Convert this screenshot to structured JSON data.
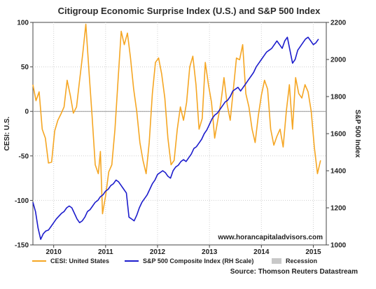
{
  "chart_data": {
    "type": "line",
    "title": "Citigroup Economic Surprise Index (U.S.) and S&P 500 Index",
    "ylabel_left": "CESI: U.S.",
    "ylabel_right": "S&P 500 Index",
    "ylim_left": [
      -150,
      100
    ],
    "ylim_right": [
      1000,
      2200
    ],
    "yticks_left": [
      -150,
      -100,
      -50,
      0,
      50,
      100
    ],
    "yticks_right": [
      1000,
      1200,
      1400,
      1600,
      1800,
      2000,
      2200
    ],
    "xlim": [
      2009.6,
      2015.25
    ],
    "xticks": [
      2010,
      2011,
      2012,
      2013,
      2014,
      2015
    ],
    "xtick_labels": [
      "2010",
      "2011",
      "2012",
      "2013",
      "2014",
      "2015"
    ],
    "grid": true,
    "watermark": "www.horancapitaladvisors.com",
    "source": "Source: Thomson Reuters Datastream",
    "colors": {
      "cesi": "#f5a623",
      "spx": "#1c1ccc",
      "recession": "#c8c8c8",
      "zero_line": "#999999"
    },
    "legend": [
      {
        "name": "CESI: United States",
        "color": "#f5a623",
        "kind": "line"
      },
      {
        "name": "S&P 500 Composite Index (RH Scale)",
        "color": "#1c1ccc",
        "kind": "line"
      },
      {
        "name": "Recession",
        "color": "#c8c8c8",
        "kind": "box"
      }
    ],
    "series": [
      {
        "name": "CESI: United States",
        "axis": "left",
        "x": [
          2009.6,
          2009.66,
          2009.72,
          2009.78,
          2009.84,
          2009.9,
          2009.96,
          2010.02,
          2010.08,
          2010.14,
          2010.2,
          2010.26,
          2010.32,
          2010.38,
          2010.44,
          2010.5,
          2010.56,
          2010.62,
          2010.68,
          2010.74,
          2010.8,
          2010.86,
          2010.9,
          2010.94,
          2011.0,
          2011.06,
          2011.12,
          2011.18,
          2011.24,
          2011.3,
          2011.36,
          2011.42,
          2011.48,
          2011.54,
          2011.6,
          2011.66,
          2011.72,
          2011.78,
          2011.84,
          2011.9,
          2011.96,
          2012.02,
          2012.08,
          2012.14,
          2012.2,
          2012.26,
          2012.32,
          2012.38,
          2012.44,
          2012.5,
          2012.56,
          2012.62,
          2012.68,
          2012.74,
          2012.8,
          2012.86,
          2012.92,
          2012.98,
          2013.04,
          2013.1,
          2013.16,
          2013.22,
          2013.28,
          2013.34,
          2013.4,
          2013.46,
          2013.52,
          2013.58,
          2013.64,
          2013.7,
          2013.76,
          2013.82,
          2013.88,
          2013.94,
          2014.0,
          2014.06,
          2014.12,
          2014.18,
          2014.24,
          2014.3,
          2014.36,
          2014.42,
          2014.48,
          2014.54,
          2014.6,
          2014.66,
          2014.72,
          2014.78,
          2014.84,
          2014.9,
          2014.96,
          2015.02,
          2015.08,
          2015.14
        ],
        "values": [
          30,
          12,
          22,
          -20,
          -30,
          -58,
          -57,
          -22,
          -10,
          -3,
          5,
          35,
          18,
          -2,
          5,
          35,
          65,
          98,
          45,
          -5,
          -60,
          -70,
          -45,
          -115,
          -95,
          -68,
          -60,
          -20,
          35,
          90,
          75,
          88,
          60,
          25,
          0,
          -35,
          -55,
          -70,
          -35,
          20,
          55,
          60,
          42,
          15,
          -30,
          -60,
          -55,
          -20,
          5,
          -10,
          10,
          50,
          62,
          30,
          -20,
          -8,
          55,
          30,
          10,
          -30,
          -10,
          10,
          38,
          8,
          -10,
          25,
          60,
          58,
          75,
          20,
          5,
          -20,
          -35,
          -5,
          18,
          35,
          25,
          -20,
          -38,
          -28,
          -20,
          -40,
          0,
          30,
          -20,
          38,
          20,
          15,
          30,
          22,
          0,
          -40,
          -70,
          -55
        ]
      },
      {
        "name": "S&P 500 Composite Index (RH Scale)",
        "axis": "right",
        "x": [
          2009.6,
          2009.65,
          2009.7,
          2009.75,
          2009.8,
          2009.85,
          2009.9,
          2009.95,
          2010.0,
          2010.05,
          2010.1,
          2010.15,
          2010.2,
          2010.25,
          2010.3,
          2010.35,
          2010.4,
          2010.45,
          2010.5,
          2010.55,
          2010.6,
          2010.65,
          2010.7,
          2010.75,
          2010.8,
          2010.85,
          2010.9,
          2010.95,
          2011.0,
          2011.05,
          2011.1,
          2011.15,
          2011.2,
          2011.25,
          2011.3,
          2011.35,
          2011.4,
          2011.45,
          2011.5,
          2011.55,
          2011.6,
          2011.65,
          2011.7,
          2011.75,
          2011.8,
          2011.85,
          2011.9,
          2011.95,
          2012.0,
          2012.05,
          2012.1,
          2012.15,
          2012.2,
          2012.25,
          2012.3,
          2012.35,
          2012.4,
          2012.45,
          2012.5,
          2012.55,
          2012.6,
          2012.65,
          2012.7,
          2012.75,
          2012.8,
          2012.85,
          2012.9,
          2012.95,
          2013.0,
          2013.05,
          2013.1,
          2013.15,
          2013.2,
          2013.25,
          2013.3,
          2013.35,
          2013.4,
          2013.45,
          2013.5,
          2013.55,
          2013.6,
          2013.65,
          2013.7,
          2013.75,
          2013.8,
          2013.85,
          2013.9,
          2013.95,
          2014.0,
          2014.05,
          2014.1,
          2014.15,
          2014.2,
          2014.25,
          2014.3,
          2014.35,
          2014.4,
          2014.45,
          2014.5,
          2014.55,
          2014.6,
          2014.65,
          2014.7,
          2014.75,
          2014.8,
          2014.85,
          2014.9,
          2014.95,
          2015.0,
          2015.05,
          2015.1
        ],
        "values": [
          1230,
          1180,
          1090,
          1030,
          1060,
          1075,
          1080,
          1100,
          1120,
          1140,
          1155,
          1170,
          1180,
          1200,
          1210,
          1200,
          1170,
          1140,
          1120,
          1130,
          1150,
          1180,
          1190,
          1210,
          1230,
          1240,
          1260,
          1270,
          1290,
          1300,
          1320,
          1330,
          1350,
          1340,
          1320,
          1300,
          1280,
          1150,
          1140,
          1130,
          1160,
          1200,
          1230,
          1250,
          1270,
          1300,
          1330,
          1350,
          1380,
          1390,
          1400,
          1390,
          1370,
          1360,
          1400,
          1420,
          1430,
          1450,
          1460,
          1450,
          1470,
          1490,
          1520,
          1530,
          1550,
          1570,
          1600,
          1620,
          1650,
          1680,
          1700,
          1710,
          1730,
          1750,
          1770,
          1780,
          1800,
          1830,
          1840,
          1850,
          1830,
          1850,
          1870,
          1890,
          1910,
          1930,
          1960,
          1980,
          2000,
          2020,
          2040,
          2050,
          2060,
          2080,
          2100,
          2080,
          2060,
          2100,
          2120,
          2050,
          1980,
          2000,
          2050,
          2070,
          2090,
          2110,
          2120,
          2100,
          2080,
          2090,
          2110
        ]
      }
    ]
  }
}
